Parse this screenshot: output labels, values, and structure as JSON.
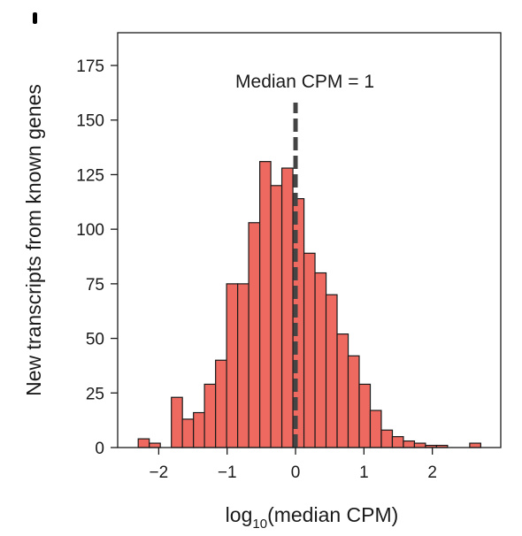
{
  "chart_data": {
    "type": "bar",
    "title": "",
    "xlabel": {
      "base": "log",
      "subscript": "10",
      "rest": "(median CPM)"
    },
    "ylabel": "New transcripts from known genes",
    "xlim": [
      -2.6,
      3.0
    ],
    "ylim": [
      0,
      190
    ],
    "xticks": [
      -2,
      -1,
      0,
      1,
      2
    ],
    "xtick_labels": [
      "−2",
      "−1",
      "0",
      "1",
      "2"
    ],
    "yticks": [
      0,
      25,
      50,
      75,
      100,
      125,
      150,
      175
    ],
    "bin_width": 0.1615,
    "bin_left_edges": [
      -2.3,
      -2.138,
      -1.977,
      -1.815,
      -1.654,
      -1.492,
      -1.331,
      -1.169,
      -1.008,
      -0.846,
      -0.685,
      -0.523,
      -0.362,
      -0.2,
      -0.038,
      0.123,
      0.285,
      0.446,
      0.608,
      0.769,
      0.931,
      1.092,
      1.254,
      1.415,
      1.577,
      1.738,
      1.9,
      2.061,
      2.223,
      2.385,
      2.546
    ],
    "counts": [
      4,
      2,
      0,
      23,
      13,
      16,
      29,
      40,
      75,
      75,
      103,
      131,
      120,
      128,
      114,
      89,
      80,
      70,
      52,
      42,
      29,
      17,
      8,
      5,
      3,
      2,
      1,
      1,
      0,
      0,
      2
    ],
    "bar_color": "#ee6a60",
    "edge_color": "#1a1a1a",
    "reference_line": {
      "x": 0,
      "label": "Median CPM = 1",
      "color": "#444444",
      "style": "dashed"
    },
    "grid": false
  }
}
